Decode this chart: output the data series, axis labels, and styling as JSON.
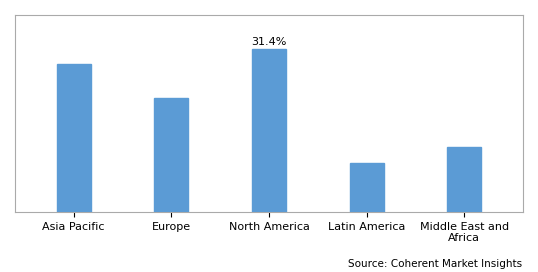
{
  "categories": [
    "Asia Pacific",
    "Europe",
    "North America",
    "Latin America",
    "Middle East and\nAfrica"
  ],
  "values": [
    28.5,
    22.0,
    31.4,
    9.5,
    12.5
  ],
  "bar_color": "#5B9BD5",
  "annotated_bar_index": 2,
  "annotation_label": "31.4%",
  "annotation_fontsize": 8,
  "source_text": "Source: Coherent Market Insights",
  "source_fontsize": 7.5,
  "tick_fontsize": 8,
  "ylim": [
    0,
    38
  ],
  "bar_width": 0.35,
  "background_color": "#ffffff",
  "border_color": "#aaaaaa"
}
